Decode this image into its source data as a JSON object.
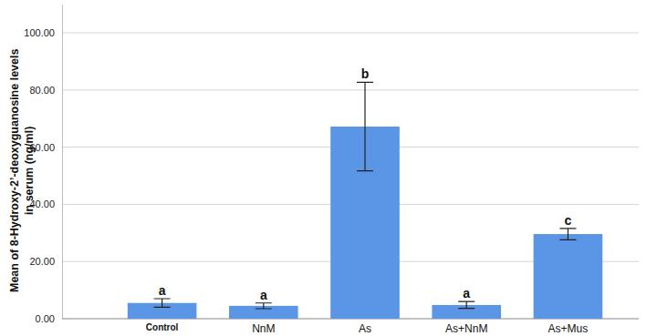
{
  "chart_data": {
    "type": "bar",
    "y_label": [
      "Mean of 8-Hydroxy-2’-deoxyguanosine levels",
      "in serum (ng/ml)"
    ],
    "categories": [
      "Control",
      "NnM",
      "As",
      "As+NnM",
      "As+Mus"
    ],
    "values": [
      5.5,
      4.5,
      67.2,
      4.8,
      29.6
    ],
    "errors": [
      1.5,
      1.0,
      15.5,
      1.2,
      2.0
    ],
    "significance_labels": [
      "a",
      "a",
      "b",
      "a",
      "c"
    ],
    "color": "#5b95e5",
    "ylim": [
      0,
      110
    ],
    "yticks": [
      {
        "value": 0,
        "label": "0.00"
      },
      {
        "value": 20,
        "label": "20.00"
      },
      {
        "value": 40,
        "label": "40.00"
      },
      {
        "value": 60,
        "label": "60.00"
      },
      {
        "value": 80,
        "label": "80.00"
      },
      {
        "value": 100,
        "label": "100.00"
      }
    ],
    "grid": true
  }
}
